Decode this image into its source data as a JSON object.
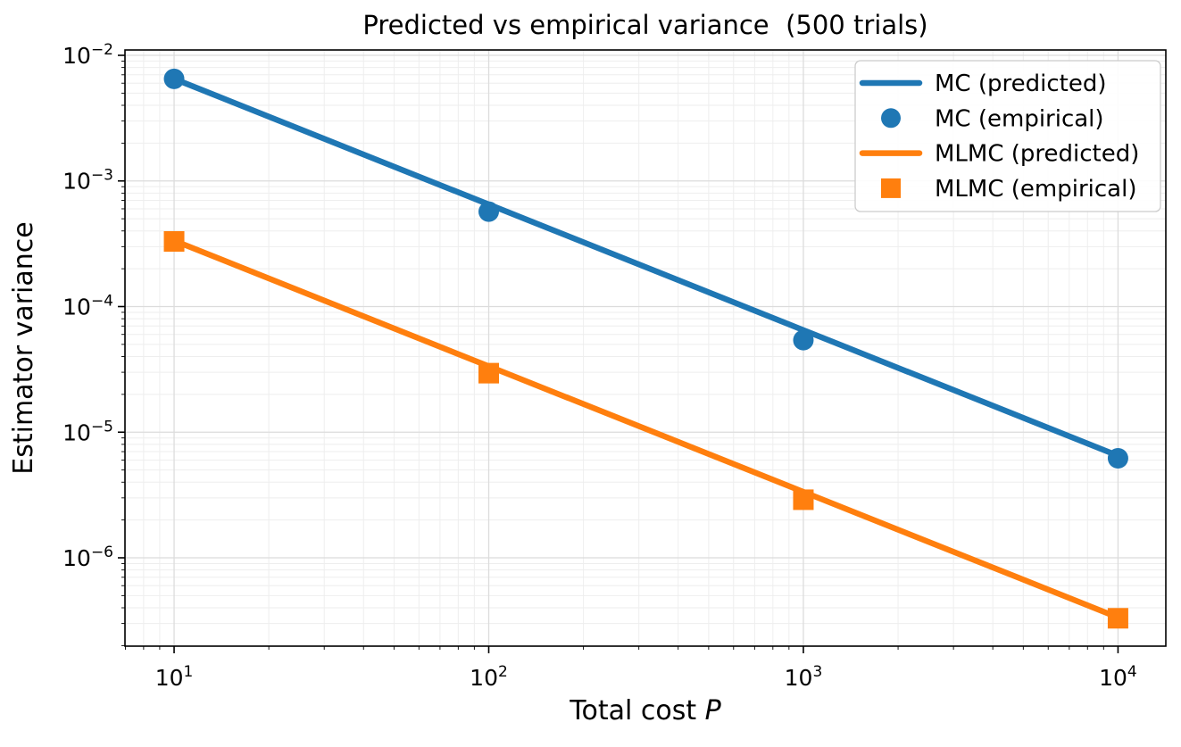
{
  "chart_data": {
    "type": "line",
    "title": "Predicted vs empirical variance  (500 trials)",
    "xlabel": "Total cost P",
    "xlabel_parts": [
      {
        "text": "Total cost ",
        "italic": false
      },
      {
        "text": "P",
        "italic": true
      }
    ],
    "ylabel": "Estimator variance",
    "xscale": "log",
    "yscale": "log",
    "xlim": [
      6.98,
      14190
    ],
    "ylim": [
      1.98e-07,
      0.01103
    ],
    "xtick_exponents": [
      1,
      2,
      3,
      4
    ],
    "ytick_exponents": [
      -2,
      -3,
      -4,
      -5,
      -6
    ],
    "grid": "both",
    "legend_position": "upper right",
    "x": [
      10,
      100,
      1000,
      10000
    ],
    "series": [
      {
        "name": "MC (predicted)",
        "style": "line",
        "marker": null,
        "color": "#1f77b4",
        "values": [
          0.0065,
          0.00065,
          6.5e-05,
          6.5e-06
        ]
      },
      {
        "name": "MC (empirical)",
        "style": "scatter",
        "marker": "circle",
        "color": "#1f77b4",
        "values": [
          0.0065,
          0.00057,
          5.4e-05,
          6.2e-06
        ]
      },
      {
        "name": "MLMC (predicted)",
        "style": "line",
        "marker": null,
        "color": "#ff7f0e",
        "values": [
          0.000335,
          3.35e-05,
          3.35e-06,
          3.35e-07
        ]
      },
      {
        "name": "MLMC (empirical)",
        "style": "scatter",
        "marker": "square",
        "color": "#ff7f0e",
        "values": [
          0.00033,
          2.95e-05,
          2.9e-06,
          3.3e-07
        ]
      }
    ],
    "colors": {
      "background": "#ffffff",
      "grid_major": "#dcdcdc",
      "grid_minor": "#eeeeee",
      "spine": "#000000",
      "text": "#000000",
      "legend_border": "#cccccc",
      "mc_blue": "#1f77b4",
      "mlmc_orange": "#ff7f0e"
    }
  }
}
